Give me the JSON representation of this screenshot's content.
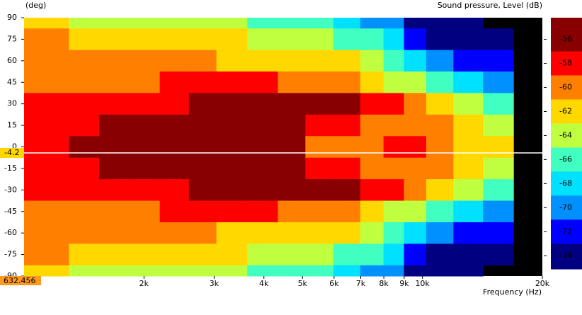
{
  "chart_data": {
    "type": "heatmap",
    "ylabel": "(deg)",
    "xlabel": "Frequency  (Hz)",
    "colorbar_title": "Sound pressure, Level  (dB)",
    "xscale": "log",
    "xlim": [
      1000,
      20000
    ],
    "xticks": [
      {
        "value": 2000,
        "label": "2k"
      },
      {
        "value": 3000,
        "label": "3k"
      },
      {
        "value": 4000,
        "label": "4k"
      },
      {
        "value": 5000,
        "label": "5k"
      },
      {
        "value": 6000,
        "label": "6k"
      },
      {
        "value": 7000,
        "label": "7k"
      },
      {
        "value": 8000,
        "label": "8k"
      },
      {
        "value": 9000,
        "label": "9k"
      },
      {
        "value": 10000,
        "label": "10k"
      },
      {
        "value": 20000,
        "label": "20k"
      }
    ],
    "ylim": [
      90,
      -90
    ],
    "yticks": [
      90,
      75,
      60,
      45,
      30,
      15,
      0,
      -15,
      -30,
      -45,
      -60,
      -75,
      -90
    ],
    "frequencies": [
      1000,
      1200,
      1400,
      1700,
      2000,
      2400,
      2800,
      3300,
      4000,
      4700,
      5500,
      6500,
      7500,
      8500,
      9500,
      11000,
      13000,
      15500
    ],
    "angles": [
      90,
      75,
      60,
      45,
      30,
      15,
      0,
      -15,
      -30,
      -45,
      -60,
      -75,
      -90
    ],
    "z": [
      [
        -62,
        -62,
        -63.5,
        -64,
        -64,
        -64,
        -64,
        -64.5,
        -65.2,
        -65.5,
        -66,
        -67.5,
        -69.5,
        -71,
        -73.5,
        -74,
        -74.5,
        null
      ],
      [
        -60,
        -60.5,
        -62,
        -62.5,
        -62.5,
        -62,
        -62.2,
        -62.5,
        -63.2,
        -63.5,
        -64,
        -65.2,
        -67,
        -69,
        -71.5,
        -73.2,
        -74,
        -74.5
      ],
      [
        -60,
        -60,
        -60.5,
        -60.5,
        -60.5,
        -60.5,
        -61,
        -61.2,
        -61.5,
        -61.5,
        -62,
        -63,
        -65,
        -67,
        -68.5,
        -70,
        -71.5,
        -73
      ],
      [
        -59.5,
        -59.5,
        -59.5,
        -59.2,
        -59.2,
        -59,
        -58.8,
        -58.8,
        -58.7,
        -59.2,
        -59.5,
        -61,
        -62,
        -63.5,
        -64.5,
        -66,
        -67.5,
        -69.5
      ],
      [
        -58.5,
        -58.5,
        -58.2,
        -58,
        -57.5,
        -57.3,
        -57,
        -56.8,
        -56.5,
        -56.6,
        -57,
        -56.8,
        -58.5,
        -58.8,
        -59.5,
        -61.5,
        -63.5,
        -65.5
      ],
      [
        -58,
        -57.8,
        -57.3,
        -56.8,
        -56.5,
        -56.3,
        -56.2,
        -56,
        -56.2,
        -56.5,
        -57.5,
        -58,
        -59.5,
        -59.8,
        -60,
        -60.8,
        -62,
        -63.5
      ],
      [
        -57.5,
        -57.2,
        -56.5,
        -56,
        -55.8,
        -55.8,
        -55.8,
        -55.7,
        -56,
        -56.6,
        -59.3,
        -59.5,
        -59.8,
        -58.5,
        -58.7,
        -60.5,
        -61.5,
        -62.5
      ],
      [
        -58,
        -57.8,
        -57.3,
        -56.8,
        -56.5,
        -56.3,
        -56.2,
        -56,
        -56.2,
        -56.5,
        -57.5,
        -58,
        -59.5,
        -59.8,
        -60,
        -60.8,
        -62,
        -63.5
      ],
      [
        -58.5,
        -58.5,
        -58.2,
        -58,
        -57.5,
        -57.3,
        -57,
        -56.8,
        -56.5,
        -56.6,
        -57,
        -56.8,
        -58.5,
        -58.8,
        -59.5,
        -61.5,
        -63.5,
        -65.5
      ],
      [
        -59.5,
        -59.5,
        -59.5,
        -59.2,
        -59.2,
        -59,
        -58.8,
        -58.8,
        -58.7,
        -59.2,
        -59.5,
        -61,
        -62,
        -63.5,
        -64.5,
        -66,
        -67.5,
        -69.5
      ],
      [
        -60,
        -60,
        -60.5,
        -60.5,
        -60.5,
        -60.5,
        -61,
        -61.2,
        -61.5,
        -61.5,
        -62,
        -63,
        -65,
        -67,
        -68.5,
        -70,
        -71.5,
        -73
      ],
      [
        -60,
        -60.5,
        -62,
        -62.5,
        -62.5,
        -62,
        -62.2,
        -62.5,
        -63.2,
        -63.5,
        -64,
        -65.2,
        -67,
        -69,
        -71.5,
        -73.2,
        -74,
        -74.5
      ],
      [
        -62,
        -62,
        -63.5,
        -64,
        -64,
        -64,
        -64,
        -64.5,
        -65.2,
        -65.5,
        -66,
        -67.5,
        -69.5,
        -71,
        -73.5,
        -74,
        -74.5,
        null
      ]
    ],
    "zlim": [
      -54.2,
      -75.1
    ],
    "zticks": [
      -56,
      -58,
      -60,
      -62,
      -64,
      -66,
      -68,
      -70,
      -72,
      -74
    ],
    "levels": [
      -54.2,
      -57,
      -59,
      -61,
      -63,
      -65,
      -67,
      -69,
      -71,
      -73,
      -75.1
    ],
    "colors": [
      "#880000",
      "#ff0000",
      "#ff8000",
      "#ffd800",
      "#c0ff40",
      "#40ffc0",
      "#00e0ff",
      "#0090ff",
      "#0000ff",
      "#000080"
    ],
    "cursor": {
      "x": 632.456,
      "y": -4.2
    }
  }
}
